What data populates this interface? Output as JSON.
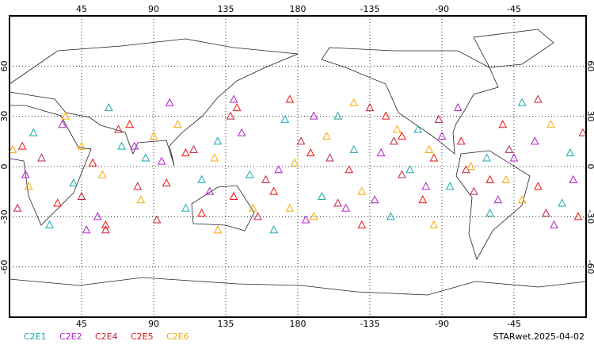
{
  "chart_data": {
    "type": "scatter",
    "annotation": "STARwet.2025-04-02",
    "xlim": [
      0,
      360
    ],
    "ylim": [
      -90,
      90
    ],
    "xticks": [
      45,
      90,
      135,
      180,
      {
        "value": 225,
        "label": "-135"
      },
      {
        "value": 270,
        "label": "-90"
      },
      {
        "value": 315,
        "label": "-45"
      }
    ],
    "yticks": [
      -60,
      -30,
      0,
      30,
      60
    ],
    "grid": true,
    "series": [
      {
        "name": "C2E1",
        "color": "#1aa6b0",
        "x": [
          15,
          40,
          62,
          85,
          110,
          130,
          150,
          172,
          195,
          215,
          238,
          255,
          275,
          298,
          320,
          345,
          25,
          70,
          120,
          165,
          205,
          250,
          300,
          350
        ],
        "values": [
          20,
          -10,
          35,
          5,
          -25,
          15,
          -5,
          28,
          -18,
          10,
          -30,
          22,
          -12,
          5,
          38,
          -22,
          -35,
          12,
          -8,
          -38,
          30,
          -2,
          -28,
          8
        ]
      },
      {
        "name": "C2E2",
        "color": "#b020c8",
        "x": [
          10,
          33,
          55,
          78,
          100,
          125,
          145,
          168,
          190,
          210,
          232,
          260,
          280,
          305,
          328,
          352,
          48,
          95,
          140,
          185,
          228,
          270,
          315,
          340
        ],
        "values": [
          -5,
          25,
          -30,
          12,
          38,
          -15,
          20,
          -2,
          30,
          -25,
          8,
          -12,
          35,
          -20,
          15,
          -8,
          -38,
          3,
          40,
          -32,
          -20,
          18,
          5,
          -35
        ]
      },
      {
        "name": "C2E4",
        "color": "#c0203c",
        "x": [
          20,
          45,
          68,
          92,
          115,
          138,
          160,
          182,
          205,
          225,
          245,
          268,
          290,
          312,
          335,
          358,
          5,
          80,
          155,
          200,
          240,
          285,
          330,
          60
        ],
        "values": [
          5,
          -18,
          22,
          -32,
          10,
          30,
          -8,
          15,
          -22,
          35,
          -5,
          28,
          -15,
          10,
          -28,
          20,
          -25,
          -12,
          -30,
          5,
          15,
          -2,
          40,
          -38
        ]
      },
      {
        "name": "C2E5",
        "color": "#f01010",
        "x": [
          8,
          30,
          52,
          75,
          98,
          120,
          142,
          165,
          188,
          212,
          235,
          258,
          282,
          308,
          330,
          355,
          110,
          175,
          220,
          265,
          300,
          60,
          140,
          245
        ],
        "values": [
          12,
          -22,
          2,
          25,
          -10,
          -28,
          35,
          -15,
          8,
          -2,
          30,
          -20,
          15,
          25,
          -12,
          -30,
          8,
          40,
          -35,
          5,
          -8,
          -35,
          -18,
          18
        ]
      },
      {
        "name": "C2E6",
        "color": "#f8a800",
        "x": [
          12,
          35,
          58,
          82,
          105,
          128,
          152,
          178,
          198,
          220,
          242,
          265,
          288,
          310,
          338,
          2,
          90,
          130,
          175,
          215,
          262,
          320,
          45,
          190
        ],
        "values": [
          -12,
          30,
          -5,
          -20,
          25,
          5,
          -25,
          2,
          18,
          -15,
          22,
          -35,
          0,
          -8,
          25,
          10,
          18,
          -38,
          -25,
          38,
          10,
          -20,
          12,
          -30
        ]
      }
    ]
  }
}
